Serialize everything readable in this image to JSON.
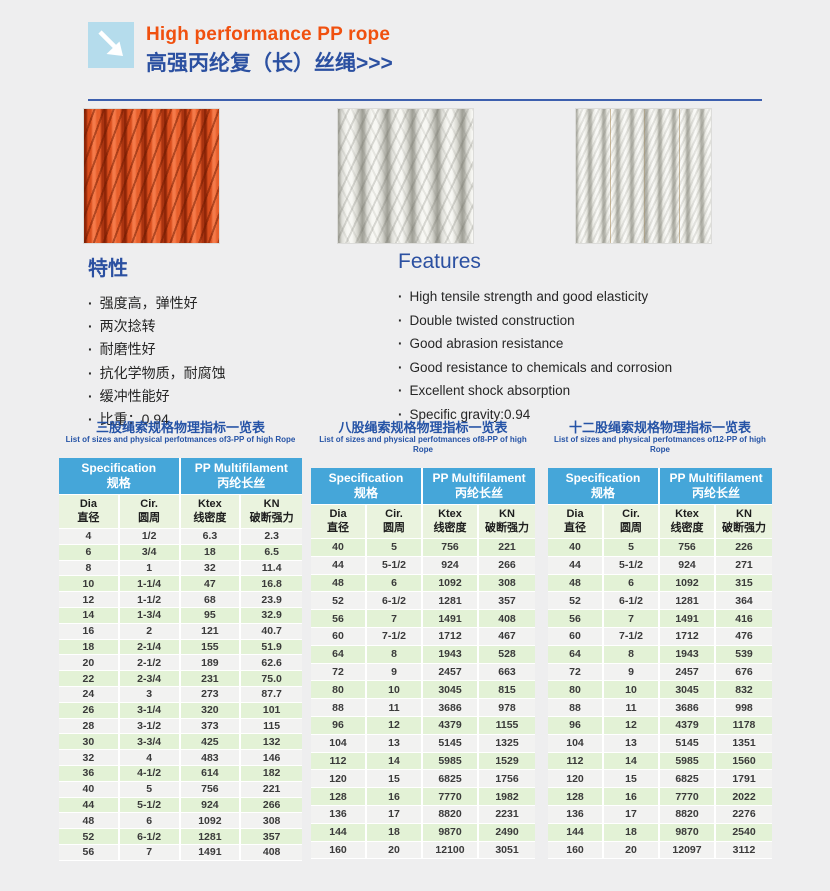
{
  "header": {
    "title_en": "High performance PP rope",
    "title_cn": "高强丙纶复（长）丝绳>>>",
    "accent_orange": "#f0500f",
    "accent_blue": "#2b50a1"
  },
  "images": [
    {
      "name": "orange-3-strand-pp-rope-photo"
    },
    {
      "name": "white-8-strand-braided-pp-rope-photo"
    },
    {
      "name": "white-12-strand-braided-pp-rope-photo"
    }
  ],
  "features_cn": {
    "heading": "特性",
    "items": [
      "强度高，弹性好",
      "两次捻转",
      "耐磨性好",
      "抗化学物质，耐腐蚀",
      "缓冲性能好",
      "比重：0.94"
    ]
  },
  "features_en": {
    "heading": "Features",
    "items": [
      "High tensile strength and good elasticity",
      "Double twisted construction",
      "Good abrasion resistance",
      "Good resistance to chemicals and corrosion",
      "Excellent shock absorption",
      "Specific gravity:0.94"
    ]
  },
  "table_colors": {
    "header_bg": "#45a6d9",
    "header_text": "#ffffff",
    "subheader_bg": "#eaf3de",
    "row_green": "#e3f2d6",
    "row_light": "#f2f2f1"
  },
  "tables": [
    {
      "title_cn": "三股绳索规格物理指标一览表",
      "title_en": "List of sizes and physical perfotmances of3-PP of high Rope",
      "group_headers": [
        {
          "en": "Specification",
          "cn": "规格"
        },
        {
          "en": "PP Multifilament",
          "cn": "丙纶长丝"
        }
      ],
      "columns": [
        {
          "en": "Dia",
          "cn": "直径"
        },
        {
          "en": "Cir.",
          "cn": "圆周"
        },
        {
          "en": "Ktex",
          "cn": "线密度"
        },
        {
          "en": "KN",
          "cn": "破断强力"
        }
      ],
      "stripe_start": "light",
      "rows": [
        [
          "4",
          "1/2",
          "6.3",
          "2.3"
        ],
        [
          "6",
          "3/4",
          "18",
          "6.5"
        ],
        [
          "8",
          "1",
          "32",
          "11.4"
        ],
        [
          "10",
          "1-1/4",
          "47",
          "16.8"
        ],
        [
          "12",
          "1-1/2",
          "68",
          "23.9"
        ],
        [
          "14",
          "1-3/4",
          "95",
          "32.9"
        ],
        [
          "16",
          "2",
          "121",
          "40.7"
        ],
        [
          "18",
          "2-1/4",
          "155",
          "51.9"
        ],
        [
          "20",
          "2-1/2",
          "189",
          "62.6"
        ],
        [
          "22",
          "2-3/4",
          "231",
          "75.0"
        ],
        [
          "24",
          "3",
          "273",
          "87.7"
        ],
        [
          "26",
          "3-1/4",
          "320",
          "101"
        ],
        [
          "28",
          "3-1/2",
          "373",
          "115"
        ],
        [
          "30",
          "3-3/4",
          "425",
          "132"
        ],
        [
          "32",
          "4",
          "483",
          "146"
        ],
        [
          "36",
          "4-1/2",
          "614",
          "182"
        ],
        [
          "40",
          "5",
          "756",
          "221"
        ],
        [
          "44",
          "5-1/2",
          "924",
          "266"
        ],
        [
          "48",
          "6",
          "1092",
          "308"
        ],
        [
          "52",
          "6-1/2",
          "1281",
          "357"
        ],
        [
          "56",
          "7",
          "1491",
          "408"
        ]
      ]
    },
    {
      "title_cn": "八股绳索规格物理指标一览表",
      "title_en": "List of sizes and physical perfotmances of8-PP of high Rope",
      "group_headers": [
        {
          "en": "Specification",
          "cn": "规格"
        },
        {
          "en": "PP Multifilament",
          "cn": "丙纶长丝"
        }
      ],
      "columns": [
        {
          "en": "Dia",
          "cn": "直径"
        },
        {
          "en": "Cir.",
          "cn": "圆周"
        },
        {
          "en": "Ktex",
          "cn": "线密度"
        },
        {
          "en": "KN",
          "cn": "破断强力"
        }
      ],
      "stripe_start": "green",
      "rows": [
        [
          "40",
          "5",
          "756",
          "221"
        ],
        [
          "44",
          "5-1/2",
          "924",
          "266"
        ],
        [
          "48",
          "6",
          "1092",
          "308"
        ],
        [
          "52",
          "6-1/2",
          "1281",
          "357"
        ],
        [
          "56",
          "7",
          "1491",
          "408"
        ],
        [
          "60",
          "7-1/2",
          "1712",
          "467"
        ],
        [
          "64",
          "8",
          "1943",
          "528"
        ],
        [
          "72",
          "9",
          "2457",
          "663"
        ],
        [
          "80",
          "10",
          "3045",
          "815"
        ],
        [
          "88",
          "11",
          "3686",
          "978"
        ],
        [
          "96",
          "12",
          "4379",
          "1155"
        ],
        [
          "104",
          "13",
          "5145",
          "1325"
        ],
        [
          "112",
          "14",
          "5985",
          "1529"
        ],
        [
          "120",
          "15",
          "6825",
          "1756"
        ],
        [
          "128",
          "16",
          "7770",
          "1982"
        ],
        [
          "136",
          "17",
          "8820",
          "2231"
        ],
        [
          "144",
          "18",
          "9870",
          "2490"
        ],
        [
          "160",
          "20",
          "12100",
          "3051"
        ]
      ]
    },
    {
      "title_cn": "十二股绳索规格物理指标一览表",
      "title_en": "List of sizes and physical perfotmances of12-PP of high Rope",
      "group_headers": [
        {
          "en": "Specification",
          "cn": "规格"
        },
        {
          "en": "PP Multifilament",
          "cn": "丙纶长丝"
        }
      ],
      "columns": [
        {
          "en": "Dia",
          "cn": "直径"
        },
        {
          "en": "Cir.",
          "cn": "圆周"
        },
        {
          "en": "Ktex",
          "cn": "线密度"
        },
        {
          "en": "KN",
          "cn": "破断强力"
        }
      ],
      "stripe_start": "green",
      "rows": [
        [
          "40",
          "5",
          "756",
          "226"
        ],
        [
          "44",
          "5-1/2",
          "924",
          "271"
        ],
        [
          "48",
          "6",
          "1092",
          "315"
        ],
        [
          "52",
          "6-1/2",
          "1281",
          "364"
        ],
        [
          "56",
          "7",
          "1491",
          "416"
        ],
        [
          "60",
          "7-1/2",
          "1712",
          "476"
        ],
        [
          "64",
          "8",
          "1943",
          "539"
        ],
        [
          "72",
          "9",
          "2457",
          "676"
        ],
        [
          "80",
          "10",
          "3045",
          "832"
        ],
        [
          "88",
          "11",
          "3686",
          "998"
        ],
        [
          "96",
          "12",
          "4379",
          "1178"
        ],
        [
          "104",
          "13",
          "5145",
          "1351"
        ],
        [
          "112",
          "14",
          "5985",
          "1560"
        ],
        [
          "120",
          "15",
          "6825",
          "1791"
        ],
        [
          "128",
          "16",
          "7770",
          "2022"
        ],
        [
          "136",
          "17",
          "8820",
          "2276"
        ],
        [
          "144",
          "18",
          "9870",
          "2540"
        ],
        [
          "160",
          "20",
          "12097",
          "3112"
        ]
      ]
    }
  ]
}
